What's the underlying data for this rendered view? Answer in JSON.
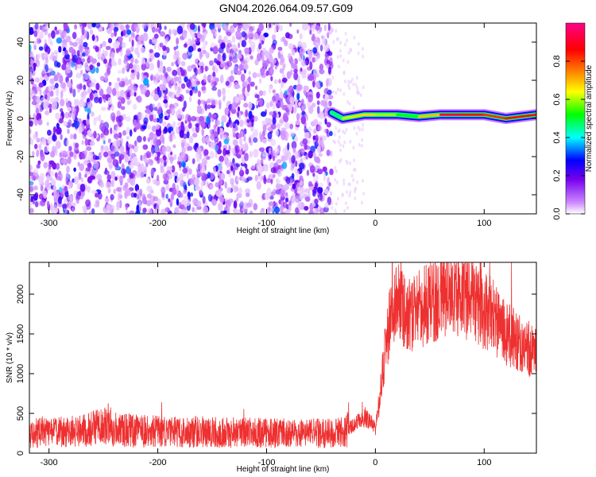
{
  "figure": {
    "title": "GN04.2026.064.09.57.G09"
  },
  "chart_data": [
    {
      "type": "heatmap",
      "xlabel": "Height of straight line (km)",
      "ylabel": "Frequency (Hz)",
      "xlim": [
        -318,
        148
      ],
      "ylim": [
        -50,
        50
      ],
      "x_ticks": [
        -300,
        -200,
        -100,
        0,
        100
      ],
      "y_ticks": [
        -40,
        -20,
        0,
        20,
        40
      ],
      "colorbar": {
        "label": "Normalized spectral amplitude",
        "range": [
          0,
          1
        ],
        "ticks": [
          0.0,
          0.2,
          0.4,
          0.6,
          0.8
        ],
        "colors": [
          "#ffffff",
          "#cc88ff",
          "#7700ee",
          "#0000ff",
          "#00ffff",
          "#00ff00",
          "#ffff00",
          "#ff8800",
          "#ff0000",
          "#ff0088"
        ]
      },
      "noise_region": {
        "x_start": -318,
        "x_end": -40,
        "amplitude": 0.25
      },
      "transition_region": {
        "x_start": -40,
        "x_end": -10,
        "frequency_hz": 2,
        "amplitude": 0.5
      },
      "signal_line": {
        "frequency_hz": 1.5,
        "x": [
          -40,
          -30,
          -20,
          -10,
          0,
          20,
          40,
          60,
          80,
          100,
          120,
          148
        ],
        "frequency": [
          3,
          0,
          1,
          2,
          2,
          2,
          1,
          2,
          2,
          2,
          0,
          2
        ],
        "amplitude": [
          0.4,
          0.6,
          0.7,
          0.7,
          0.7,
          0.55,
          0.55,
          0.9,
          0.95,
          0.8,
          0.9,
          0.85
        ]
      }
    },
    {
      "type": "line",
      "xlabel": "Height of straight line (km)",
      "ylabel": "SNR (10 * v/v)",
      "xlim": [
        -318,
        148
      ],
      "ylim": [
        0,
        2400
      ],
      "x_ticks": [
        -300,
        -200,
        -100,
        0,
        100
      ],
      "y_ticks": [
        0,
        500,
        1000,
        1500,
        2000
      ],
      "color": "#ee3030",
      "series": [
        {
          "name": "",
          "x": [
            -318,
            -300,
            -280,
            -260,
            -250,
            -240,
            -220,
            -200,
            -180,
            -160,
            -140,
            -120,
            -100,
            -80,
            -60,
            -40,
            -30,
            -20,
            -10,
            -5,
            0,
            5,
            10,
            15,
            20,
            30,
            40,
            50,
            60,
            70,
            80,
            90,
            100,
            110,
            120,
            130,
            140,
            148
          ],
          "y": [
            250,
            260,
            270,
            300,
            350,
            300,
            280,
            270,
            260,
            270,
            260,
            260,
            250,
            250,
            250,
            250,
            260,
            350,
            450,
            400,
            300,
            800,
            1400,
            1800,
            1900,
            1700,
            1800,
            1900,
            2000,
            2050,
            2000,
            1900,
            1800,
            1700,
            1500,
            1400,
            1300,
            1300
          ]
        }
      ]
    }
  ]
}
